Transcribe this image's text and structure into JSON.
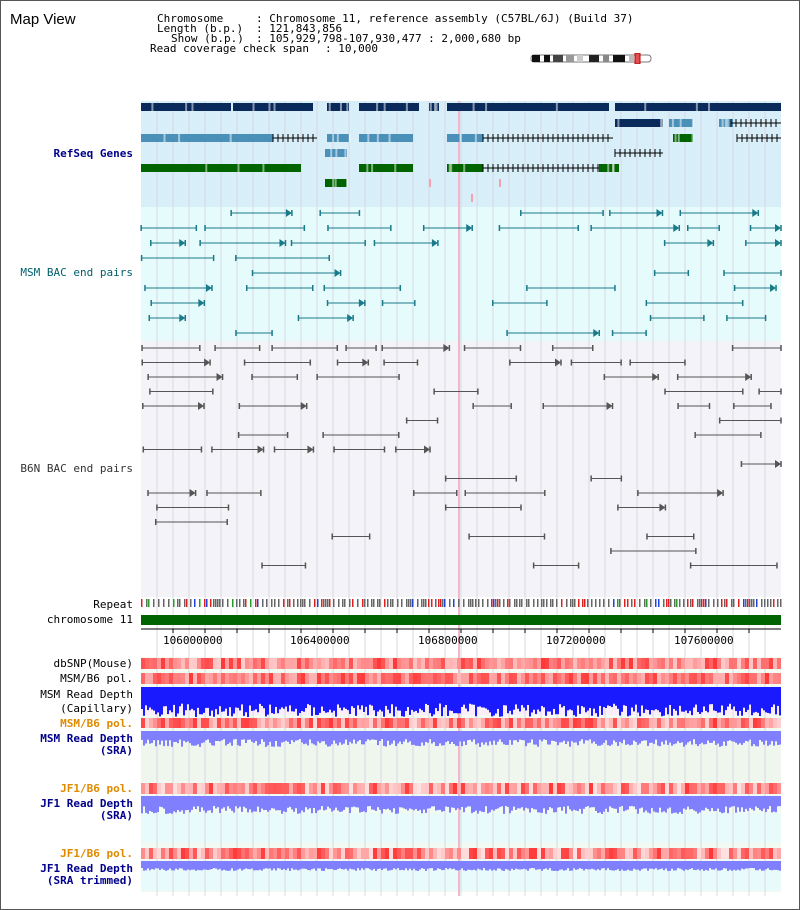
{
  "view_title": "Map View",
  "header": {
    "chrom_key": "Chromosome",
    "chrom_val": ": Chromosome 11, reference assembly (C57BL/6J) (Build 37)",
    "len_key": "Length (b.p.)",
    "len_val": ": 121,843,856",
    "show_key": "Show (b.p.)",
    "show_val": ": 105,929,798-107,930,477 : 2,000,680 bp",
    "span_key": "Read coverage check span",
    "span_val": ": 10,000"
  },
  "tracks": {
    "refseq": "RefSeq Genes",
    "msm_bac": "MSM BAC end pairs",
    "b6n_bac": "B6N BAC end pairs",
    "repeat": "Repeat",
    "chromosome": "chromosome 11",
    "dbsnp": "dbSNP(Mouse)",
    "msm_pol": "MSM/B6 pol.",
    "msm_depth_cap_1": "MSM Read Depth",
    "msm_depth_cap_2": "(Capillary)",
    "msm_pol2": "MSM/B6 pol.",
    "msm_depth_sra_1": "MSM Read Depth",
    "msm_depth_sra_2": "(SRA)",
    "jf1_pol": "JF1/B6 pol.",
    "jf1_depth_1": "JF1 Read Depth",
    "jf1_depth_2": "(SRA)",
    "jf1_pol2": "JF1/B6 pol.",
    "jf1_trim_1": "JF1 Read Depth",
    "jf1_trim_2": "(SRA trimmed)"
  },
  "axis_ticks": [
    "106000000",
    "106400000",
    "106800000",
    "107200000",
    "107600000"
  ],
  "colors": {
    "refseq_dark": "#0a2a5c",
    "refseq_mid": "#4a90b8",
    "refseq_green": "#006400",
    "refseq_bg": "#d8eef8",
    "msm_bg": "#e6fbfb",
    "msm_line": "#1a7a8a",
    "b6n_line": "#555555",
    "chrom_green": "#006400",
    "depth_blue": "#1a1aff",
    "sra_blue": "#8080ff",
    "snp_red": "#ff6060"
  }
}
